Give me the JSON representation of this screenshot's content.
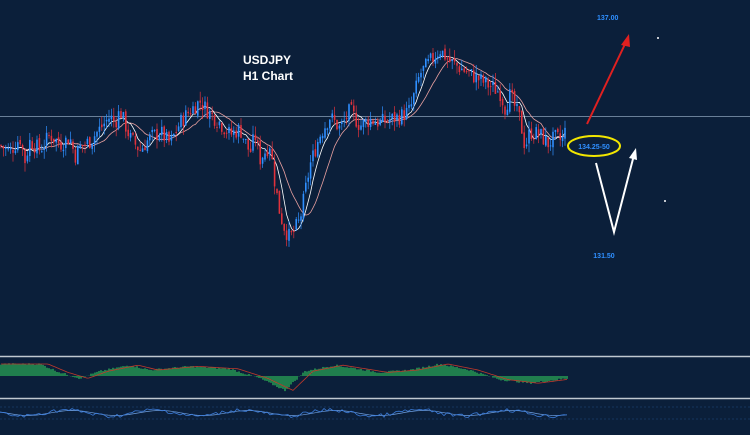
{
  "chart_data": {
    "type": "candlestick",
    "instrument": "USDJPY",
    "timeframe": "H1 Chart",
    "grid": false,
    "legend": "none",
    "colors": {
      "background": "#0b1f3a",
      "bull_candle": "#2f8fff",
      "bear_candle": "#e0323c",
      "ma_fast": "#ffffff",
      "ma_slow": "#e8a0a0",
      "price_line": "#8aa0b8",
      "histogram": "#2fbf5a",
      "signal_line": "#c0392b",
      "separator": "#c0c8d0",
      "oscillator": "#3b7bd8",
      "target_up_arrow": "#e02020",
      "scenario_arrow": "#ffffff",
      "highlight_ellipse": "#f2e600",
      "level_label": "#2f8fff"
    },
    "close_path": [
      [
        0,
        134.7
      ],
      [
        10,
        134.5
      ],
      [
        20,
        134.95
      ],
      [
        25,
        134.2
      ],
      [
        30,
        134.85
      ],
      [
        40,
        134.55
      ],
      [
        50,
        135.05
      ],
      [
        60,
        134.75
      ],
      [
        70,
        134.95
      ],
      [
        75,
        134.35
      ],
      [
        80,
        134.65
      ],
      [
        90,
        134.85
      ],
      [
        100,
        135.25
      ],
      [
        110,
        135.65
      ],
      [
        115,
        135.45
      ],
      [
        120,
        135.85
      ],
      [
        130,
        134.95
      ],
      [
        140,
        134.55
      ],
      [
        150,
        134.95
      ],
      [
        160,
        135.15
      ],
      [
        170,
        134.75
      ],
      [
        180,
        135.45
      ],
      [
        190,
        135.85
      ],
      [
        200,
        136.15
      ],
      [
        210,
        135.75
      ],
      [
        220,
        135.45
      ],
      [
        230,
        135.05
      ],
      [
        240,
        135.25
      ],
      [
        250,
        134.45
      ],
      [
        255,
        135.05
      ],
      [
        260,
        134.25
      ],
      [
        270,
        134.75
      ],
      [
        275,
        133.45
      ],
      [
        280,
        132.45
      ],
      [
        285,
        131.95
      ],
      [
        290,
        131.65
      ],
      [
        300,
        132.25
      ],
      [
        310,
        134.05
      ],
      [
        320,
        135.05
      ],
      [
        330,
        135.65
      ],
      [
        340,
        135.25
      ],
      [
        350,
        135.85
      ],
      [
        360,
        135.35
      ],
      [
        370,
        135.55
      ],
      [
        380,
        135.45
      ],
      [
        390,
        135.55
      ],
      [
        400,
        135.65
      ],
      [
        410,
        135.85
      ],
      [
        420,
        137.05
      ],
      [
        430,
        137.45
      ],
      [
        440,
        137.85
      ],
      [
        450,
        137.45
      ],
      [
        460,
        137.25
      ],
      [
        470,
        137.05
      ],
      [
        480,
        136.85
      ],
      [
        490,
        136.65
      ],
      [
        500,
        136.45
      ],
      [
        505,
        135.95
      ],
      [
        510,
        136.35
      ],
      [
        520,
        135.55
      ],
      [
        525,
        134.65
      ],
      [
        530,
        135.15
      ],
      [
        540,
        135.05
      ],
      [
        548,
        134.75
      ],
      [
        555,
        134.95
      ],
      [
        562,
        134.85
      ],
      [
        567,
        135.35
      ]
    ],
    "current_price_level": 135.65,
    "levels": [
      {
        "label": "137.00",
        "value": 137.0
      },
      {
        "label": "134.25-50",
        "value": 134.4
      },
      {
        "label": "131.50",
        "value": 131.5
      }
    ],
    "histogram_phases": [
      [
        0,
        1
      ],
      [
        40,
        1
      ],
      [
        60,
        0.3
      ],
      [
        80,
        -0.2
      ],
      [
        100,
        0.4
      ],
      [
        130,
        0.9
      ],
      [
        150,
        0.5
      ],
      [
        190,
        0.8
      ],
      [
        230,
        0.6
      ],
      [
        260,
        -0.2
      ],
      [
        285,
        -1.2
      ],
      [
        305,
        0.4
      ],
      [
        335,
        0.9
      ],
      [
        380,
        0.3
      ],
      [
        410,
        0.5
      ],
      [
        440,
        1.0
      ],
      [
        470,
        0.5
      ],
      [
        500,
        -0.3
      ],
      [
        530,
        -0.6
      ],
      [
        567,
        -0.2
      ]
    ]
  },
  "title": {
    "line1": "USDJPY",
    "line2": "H1 Chart"
  },
  "annotations": {
    "target_high": "137.00",
    "support_zone": "134.25-50",
    "target_low": "131.50"
  }
}
